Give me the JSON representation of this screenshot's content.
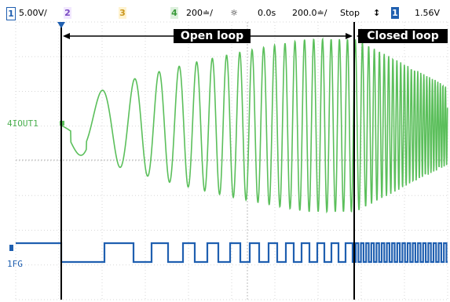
{
  "status_bar": {
    "ch1_number": "1",
    "ch1_scale": "5.00V/",
    "ch2_number": "2",
    "ch3_number": "3",
    "ch4_number": "4",
    "ch4_scale": "200≐/",
    "timebase_icon": "sun-icon",
    "time_offset": "0.0s",
    "timebase": "200.0≐/",
    "run_state": "Stop",
    "trigger_icon": "trigger-edge-icon",
    "trigger_channel": "1",
    "trigger_level": "1.56V"
  },
  "annotations": {
    "open_loop": "Open loop",
    "closed_loop": "Closed loop"
  },
  "traces": {
    "ch4_number": "4",
    "ch4_label": "IOUT1",
    "ch1_number": "1",
    "ch1_label": "FG"
  },
  "colors": {
    "ch1": "#1f5fb0",
    "ch4": "#5bbf5b",
    "grid": "#d7d7d7",
    "markers": "#000000"
  }
}
